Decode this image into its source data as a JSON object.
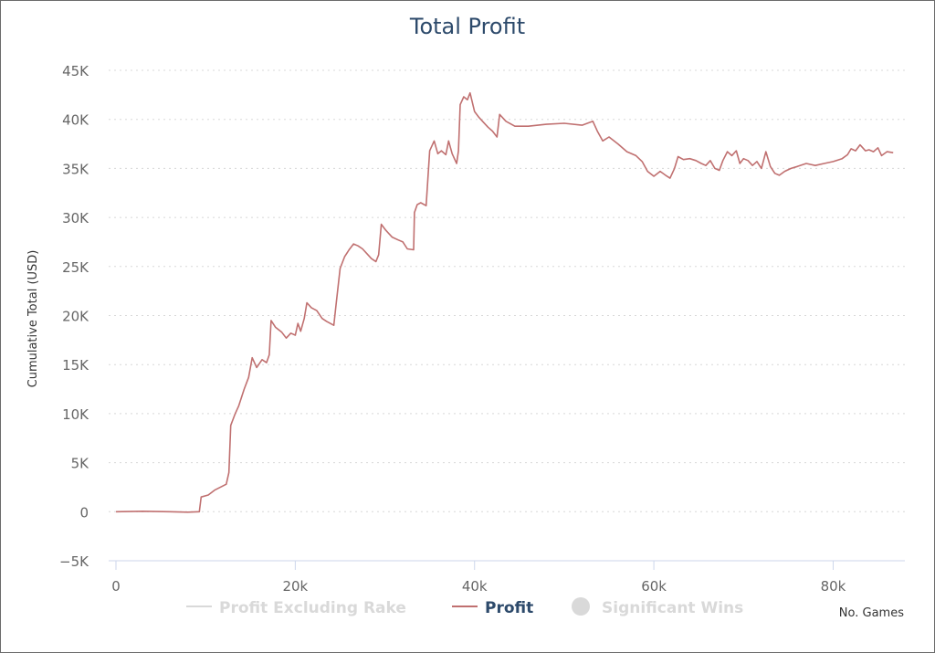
{
  "chart_data": {
    "type": "line",
    "title": "Total Profit",
    "xlabel": "No. Games",
    "ylabel": "Cumulative Total (USD)",
    "xlim": [
      0,
      88000
    ],
    "ylim": [
      -5000,
      45000
    ],
    "x_ticks": [
      {
        "value": 0,
        "label": "0"
      },
      {
        "value": 20000,
        "label": "20k"
      },
      {
        "value": 40000,
        "label": "40k"
      },
      {
        "value": 60000,
        "label": "60k"
      },
      {
        "value": 80000,
        "label": "80k"
      }
    ],
    "y_ticks": [
      {
        "value": -5000,
        "label": "−5K"
      },
      {
        "value": 0,
        "label": "0"
      },
      {
        "value": 5000,
        "label": "5K"
      },
      {
        "value": 10000,
        "label": "10K"
      },
      {
        "value": 15000,
        "label": "15K"
      },
      {
        "value": 20000,
        "label": "20K"
      },
      {
        "value": 25000,
        "label": "25K"
      },
      {
        "value": 30000,
        "label": "30K"
      },
      {
        "value": 35000,
        "label": "35K"
      },
      {
        "value": 40000,
        "label": "40K"
      },
      {
        "value": 45000,
        "label": "45K"
      }
    ],
    "grid": true,
    "legend_placement": "bottom-center",
    "legend": [
      {
        "name": "Profit Excluding Rake",
        "symbol": "line",
        "color": "#d9d9d9",
        "text_color": "#d9d9d9"
      },
      {
        "name": "Profit",
        "symbol": "line",
        "color": "#c07070",
        "text_color": "#2d4a6b"
      },
      {
        "name": "Significant Wins",
        "symbol": "circle",
        "color": "#d9d9d9",
        "text_color": "#d9d9d9"
      }
    ],
    "series": [
      {
        "name": "Profit",
        "color": "#c07070",
        "visible": true,
        "points": [
          [
            0,
            0
          ],
          [
            3000,
            50
          ],
          [
            6000,
            0
          ],
          [
            8000,
            -50
          ],
          [
            9300,
            0
          ],
          [
            9500,
            1500
          ],
          [
            10300,
            1700
          ],
          [
            11000,
            2200
          ],
          [
            12300,
            2800
          ],
          [
            12600,
            4000
          ],
          [
            12800,
            8800
          ],
          [
            13300,
            10000
          ],
          [
            13700,
            10800
          ],
          [
            14300,
            12500
          ],
          [
            14800,
            13700
          ],
          [
            15200,
            15700
          ],
          [
            15700,
            14700
          ],
          [
            16300,
            15500
          ],
          [
            16800,
            15200
          ],
          [
            17100,
            16000
          ],
          [
            17300,
            19500
          ],
          [
            17800,
            18800
          ],
          [
            18500,
            18300
          ],
          [
            19000,
            17700
          ],
          [
            19500,
            18200
          ],
          [
            20000,
            18000
          ],
          [
            20300,
            19200
          ],
          [
            20600,
            18400
          ],
          [
            21000,
            19700
          ],
          [
            21300,
            21300
          ],
          [
            21800,
            20800
          ],
          [
            22400,
            20500
          ],
          [
            23000,
            19700
          ],
          [
            23500,
            19400
          ],
          [
            24300,
            19000
          ],
          [
            24600,
            21500
          ],
          [
            25000,
            24800
          ],
          [
            25500,
            26000
          ],
          [
            26000,
            26700
          ],
          [
            26500,
            27300
          ],
          [
            27000,
            27100
          ],
          [
            27500,
            26800
          ],
          [
            28000,
            26300
          ],
          [
            28500,
            25800
          ],
          [
            29000,
            25500
          ],
          [
            29300,
            26200
          ],
          [
            29600,
            29300
          ],
          [
            30100,
            28700
          ],
          [
            30800,
            28000
          ],
          [
            31500,
            27700
          ],
          [
            32000,
            27500
          ],
          [
            32500,
            26800
          ],
          [
            33200,
            26700
          ],
          [
            33300,
            30500
          ],
          [
            33600,
            31300
          ],
          [
            34000,
            31500
          ],
          [
            34600,
            31200
          ],
          [
            35000,
            36800
          ],
          [
            35500,
            37800
          ],
          [
            35900,
            36500
          ],
          [
            36300,
            36800
          ],
          [
            36800,
            36400
          ],
          [
            37100,
            37800
          ],
          [
            37500,
            36500
          ],
          [
            38000,
            35500
          ],
          [
            38200,
            36800
          ],
          [
            38400,
            41500
          ],
          [
            38800,
            42300
          ],
          [
            39200,
            42000
          ],
          [
            39500,
            42700
          ],
          [
            40000,
            40800
          ],
          [
            40500,
            40200
          ],
          [
            41000,
            39700
          ],
          [
            41500,
            39200
          ],
          [
            42000,
            38800
          ],
          [
            42500,
            38200
          ],
          [
            42800,
            40500
          ],
          [
            43500,
            39800
          ],
          [
            44500,
            39300
          ],
          [
            46000,
            39300
          ],
          [
            48000,
            39500
          ],
          [
            50000,
            39600
          ],
          [
            52000,
            39400
          ],
          [
            53200,
            39800
          ],
          [
            53700,
            38800
          ],
          [
            54300,
            37800
          ],
          [
            55000,
            38200
          ],
          [
            56000,
            37500
          ],
          [
            57000,
            36700
          ],
          [
            58000,
            36300
          ],
          [
            58700,
            35700
          ],
          [
            59300,
            34700
          ],
          [
            60000,
            34200
          ],
          [
            60700,
            34700
          ],
          [
            61300,
            34300
          ],
          [
            61800,
            34000
          ],
          [
            62300,
            35000
          ],
          [
            62700,
            36200
          ],
          [
            63300,
            35900
          ],
          [
            64000,
            36000
          ],
          [
            64700,
            35800
          ],
          [
            65300,
            35500
          ],
          [
            65800,
            35300
          ],
          [
            66300,
            35800
          ],
          [
            66800,
            35000
          ],
          [
            67300,
            34800
          ],
          [
            67700,
            35800
          ],
          [
            68200,
            36700
          ],
          [
            68700,
            36300
          ],
          [
            69200,
            36800
          ],
          [
            69600,
            35500
          ],
          [
            70000,
            36000
          ],
          [
            70500,
            35800
          ],
          [
            71000,
            35300
          ],
          [
            71500,
            35700
          ],
          [
            72000,
            35000
          ],
          [
            72500,
            36700
          ],
          [
            73000,
            35200
          ],
          [
            73500,
            34500
          ],
          [
            74000,
            34300
          ],
          [
            74600,
            34700
          ],
          [
            75300,
            35000
          ],
          [
            76000,
            35200
          ],
          [
            77000,
            35500
          ],
          [
            78000,
            35300
          ],
          [
            79000,
            35500
          ],
          [
            80000,
            35700
          ],
          [
            81000,
            36000
          ],
          [
            81600,
            36400
          ],
          [
            82000,
            37000
          ],
          [
            82500,
            36800
          ],
          [
            83000,
            37400
          ],
          [
            83600,
            36800
          ],
          [
            84000,
            36900
          ],
          [
            84500,
            36700
          ],
          [
            85000,
            37100
          ],
          [
            85400,
            36300
          ],
          [
            86000,
            36700
          ],
          [
            86700,
            36600
          ]
        ]
      }
    ]
  }
}
